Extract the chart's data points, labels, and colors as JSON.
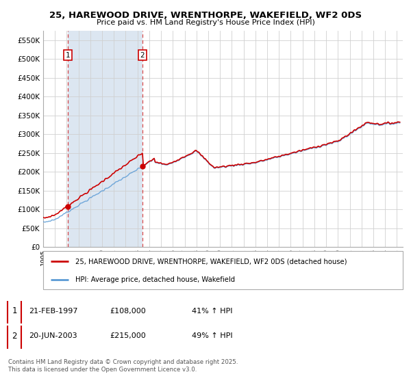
{
  "title": "25, HAREWOOD DRIVE, WRENTHORPE, WAKEFIELD, WF2 0DS",
  "subtitle": "Price paid vs. HM Land Registry's House Price Index (HPI)",
  "sale1_label": "21-FEB-1997",
  "sale1_price": 108000,
  "sale1_hpi": "41% ↑ HPI",
  "sale1_t": 1997.083,
  "sale2_label": "20-JUN-2003",
  "sale2_price": 215000,
  "sale2_hpi": "49% ↑ HPI",
  "sale2_t": 2003.417,
  "legend1": "25, HAREWOOD DRIVE, WRENTHORPE, WAKEFIELD, WF2 0DS (detached house)",
  "legend2": "HPI: Average price, detached house, Wakefield",
  "footnote": "Contains HM Land Registry data © Crown copyright and database right 2025.\nThis data is licensed under the Open Government Licence v3.0.",
  "red_color": "#cc0000",
  "blue_color": "#5b9bd5",
  "span_color": "#dce6f1",
  "plot_bg": "#ffffff",
  "grid_color": "#d0d0d0",
  "ylim": [
    0,
    575000
  ],
  "yticks": [
    0,
    50000,
    100000,
    150000,
    200000,
    250000,
    300000,
    350000,
    400000,
    450000,
    500000,
    550000
  ],
  "xlim_left": 1995.0,
  "xlim_right": 2025.5
}
